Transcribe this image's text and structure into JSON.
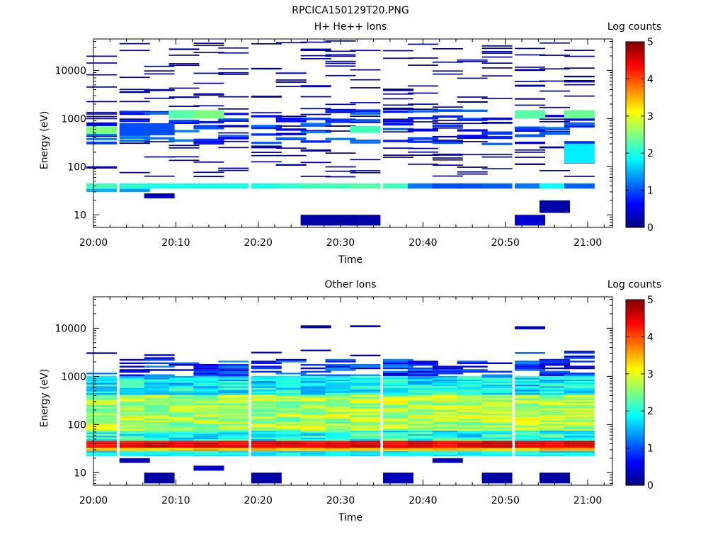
{
  "figure": {
    "title": "RPCICA150129T20.PNG"
  },
  "colorscale": {
    "stops": [
      "#00007f",
      "#0000ff",
      "#007fff",
      "#00ffff",
      "#7fff7f",
      "#ffff00",
      "#ff7f00",
      "#ff0000",
      "#7f0000"
    ]
  },
  "chart_data": [
    {
      "type": "heatmap",
      "title": "H+ He++ Ions",
      "xlabel": "Time",
      "ylabel": "Energy (eV)",
      "colorbar_label": "Log counts",
      "colorbar_ticks": [
        "0",
        "1",
        "2",
        "3",
        "4",
        "5"
      ],
      "clim": [
        0,
        5
      ],
      "x_scale": "time",
      "xlim": [
        "20:00",
        "21:03"
      ],
      "x_ticks": [
        "20:00",
        "20:10",
        "20:20",
        "20:30",
        "20:40",
        "20:50",
        "21:00"
      ],
      "y_scale": "log",
      "ylim": [
        5.5,
        45000
      ],
      "y_ticks": [
        "10",
        "100",
        "1000",
        "10000"
      ],
      "time_bins": [
        "20:01",
        "20:05",
        "20:08",
        "20:11",
        "20:14",
        "20:17",
        "20:21",
        "20:24",
        "20:27",
        "20:30",
        "20:33",
        "20:37",
        "20:40",
        "20:43",
        "20:46",
        "20:49",
        "20:53",
        "20:56",
        "20:59"
      ],
      "grid": false,
      "description_bands": [
        {
          "energy_range_eV": [
            28,
            45
          ],
          "log_counts": 2.0
        },
        {
          "energy_range_eV": [
            300,
            1500
          ],
          "log_counts": 1.0
        }
      ],
      "data": [
        {
          "t": "20:01",
          "e": [
            30,
            35
          ],
          "v": 1.5
        },
        {
          "t": "20:01",
          "e": [
            35,
            45
          ],
          "v": 2.2
        },
        {
          "t": "20:01",
          "e": [
            480,
            700
          ],
          "v": 2.5
        },
        {
          "t": "20:05",
          "e": [
            30,
            35
          ],
          "v": 1.4
        },
        {
          "t": "20:05",
          "e": [
            35,
            45
          ],
          "v": 2.1
        },
        {
          "t": "20:05",
          "e": [
            450,
            800
          ],
          "v": 1.0
        },
        {
          "t": "20:08",
          "e": [
            22,
            28
          ],
          "v": 0.3
        },
        {
          "t": "20:08",
          "e": [
            35,
            45
          ],
          "v": 2.0
        },
        {
          "t": "20:08",
          "e": [
            450,
            800
          ],
          "v": 1.0
        },
        {
          "t": "20:11",
          "e": [
            35,
            45
          ],
          "v": 2.0
        },
        {
          "t": "20:11",
          "e": [
            1000,
            1500
          ],
          "v": 2.3
        },
        {
          "t": "20:14",
          "e": [
            35,
            45
          ],
          "v": 2.0
        },
        {
          "t": "20:14",
          "e": [
            1000,
            1500
          ],
          "v": 2.5
        },
        {
          "t": "20:17",
          "e": [
            35,
            45
          ],
          "v": 2.0
        },
        {
          "t": "20:21",
          "e": [
            35,
            45
          ],
          "v": 2.0
        },
        {
          "t": "20:24",
          "e": [
            35,
            45
          ],
          "v": 2.1
        },
        {
          "t": "20:27",
          "e": [
            35,
            45
          ],
          "v": 2.2
        },
        {
          "t": "20:27",
          "e": [
            6,
            10
          ],
          "v": 0.2
        },
        {
          "t": "20:30",
          "e": [
            35,
            45
          ],
          "v": 2.2
        },
        {
          "t": "20:30",
          "e": [
            6,
            10
          ],
          "v": 0.2
        },
        {
          "t": "20:33",
          "e": [
            35,
            45
          ],
          "v": 2.3
        },
        {
          "t": "20:33",
          "e": [
            6,
            10
          ],
          "v": 0.2
        },
        {
          "t": "20:33",
          "e": [
            500,
            700
          ],
          "v": 2.2
        },
        {
          "t": "20:37",
          "e": [
            35,
            45
          ],
          "v": 2.2
        },
        {
          "t": "20:40",
          "e": [
            35,
            45
          ],
          "v": 1.2
        },
        {
          "t": "20:43",
          "e": [
            35,
            45
          ],
          "v": 1.0
        },
        {
          "t": "20:46",
          "e": [
            35,
            45
          ],
          "v": 1.0
        },
        {
          "t": "20:49",
          "e": [
            35,
            45
          ],
          "v": 1.1
        },
        {
          "t": "20:53",
          "e": [
            35,
            45
          ],
          "v": 1.2
        },
        {
          "t": "20:53",
          "e": [
            1000,
            1500
          ],
          "v": 2.3
        },
        {
          "t": "20:53",
          "e": [
            6,
            10
          ],
          "v": 0.4
        },
        {
          "t": "20:56",
          "e": [
            35,
            45
          ],
          "v": 1.9
        },
        {
          "t": "20:56",
          "e": [
            11,
            20
          ],
          "v": 0.2
        },
        {
          "t": "20:59",
          "e": [
            35,
            45
          ],
          "v": 1.1
        },
        {
          "t": "20:59",
          "e": [
            1000,
            1500
          ],
          "v": 2.4
        },
        {
          "t": "20:59",
          "e": [
            120,
            300
          ],
          "v": 1.8
        }
      ]
    },
    {
      "type": "heatmap",
      "title": "Other Ions",
      "xlabel": "Time",
      "ylabel": "Energy (eV)",
      "colorbar_label": "Log counts",
      "colorbar_ticks": [
        "0",
        "1",
        "2",
        "3",
        "4",
        "5"
      ],
      "clim": [
        0,
        5
      ],
      "x_scale": "time",
      "xlim": [
        "20:00",
        "21:03"
      ],
      "x_ticks": [
        "20:00",
        "20:10",
        "20:20",
        "20:30",
        "20:40",
        "20:50",
        "21:00"
      ],
      "y_scale": "log",
      "ylim": [
        5.5,
        45000
      ],
      "y_ticks": [
        "10",
        "100",
        "1000",
        "10000"
      ],
      "time_bins": [
        "20:01",
        "20:05",
        "20:08",
        "20:11",
        "20:14",
        "20:17",
        "20:21",
        "20:24",
        "20:27",
        "20:30",
        "20:33",
        "20:37",
        "20:40",
        "20:43",
        "20:46",
        "20:49",
        "20:53",
        "20:56",
        "20:59"
      ],
      "grid": false,
      "profile": [
        {
          "energy_range_eV": [
            22,
            28
          ],
          "log_counts": 1.8
        },
        {
          "energy_range_eV": [
            28,
            33
          ],
          "log_counts": 3.5
        },
        {
          "energy_range_eV": [
            33,
            45
          ],
          "log_counts": 4.5
        },
        {
          "energy_range_eV": [
            45,
            70
          ],
          "log_counts": 2.0
        },
        {
          "energy_range_eV": [
            70,
            400
          ],
          "log_counts": 2.7
        },
        {
          "energy_range_eV": [
            400,
            1000
          ],
          "log_counts": 1.8
        },
        {
          "energy_range_eV": [
            1000,
            3000
          ],
          "log_counts": 0.8
        }
      ],
      "sparse": [
        {
          "t": "20:05",
          "e": [
            16,
            20
          ],
          "v": 0.3
        },
        {
          "t": "20:08",
          "e": [
            6,
            10
          ],
          "v": 0.2
        },
        {
          "t": "20:14",
          "e": [
            11,
            14
          ],
          "v": 0.4
        },
        {
          "t": "20:21",
          "e": [
            6,
            10
          ],
          "v": 0.2
        },
        {
          "t": "20:27",
          "e": [
            10000,
            11500
          ],
          "v": 0.2
        },
        {
          "t": "20:33",
          "e": [
            10500,
            11500
          ],
          "v": 0.3
        },
        {
          "t": "20:37",
          "e": [
            6,
            10
          ],
          "v": 0.3
        },
        {
          "t": "20:43",
          "e": [
            16,
            20
          ],
          "v": 0.3
        },
        {
          "t": "20:49",
          "e": [
            6,
            10
          ],
          "v": 0.2
        },
        {
          "t": "20:53",
          "e": [
            9500,
            11000
          ],
          "v": 0.3
        },
        {
          "t": "20:56",
          "e": [
            6,
            10
          ],
          "v": 0.2
        }
      ]
    }
  ]
}
